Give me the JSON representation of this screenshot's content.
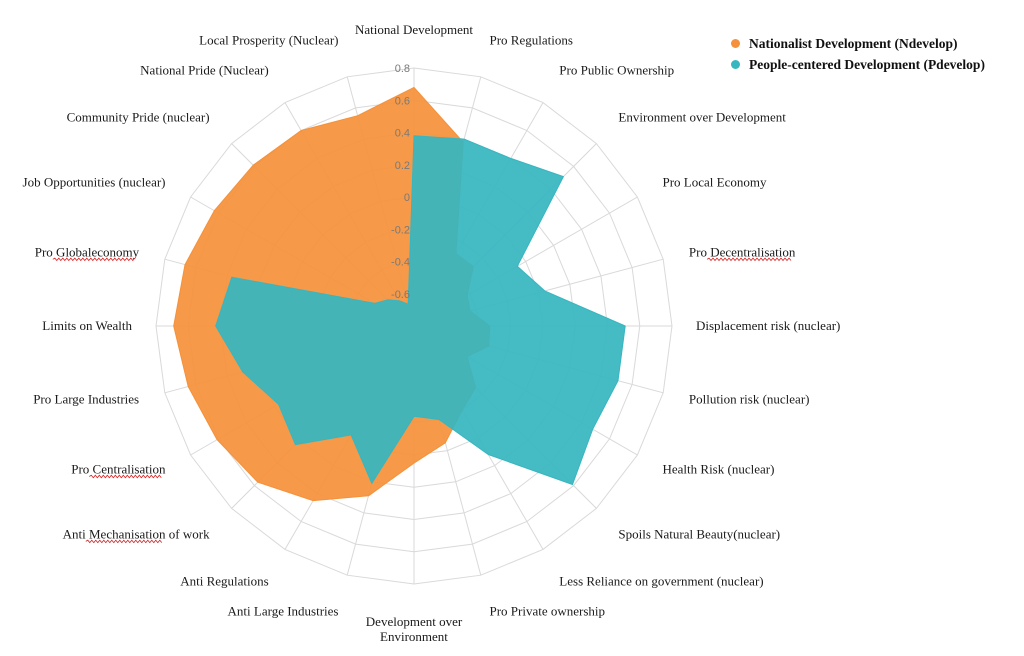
{
  "chart_data": {
    "type": "radar",
    "axes": [
      "National Development",
      "Pro Regulations",
      "Pro Public Ownership",
      "Environment over Development",
      "Pro Local Economy",
      "Pro Decentralisation",
      "Displacement risk (nuclear)",
      "Pollution risk (nuclear)",
      "Health Risk (nuclear)",
      "Spoils Natural Beauty(nuclear)",
      "Less Reliance on government (nuclear)",
      "Pro Private ownership",
      "Development over Environment",
      "Anti Large Industries",
      "Anti Regulations",
      "Anti Mechanisation of work",
      "Pro Centralisation",
      "Pro Large Industries",
      "Limits on Wealth",
      "Pro Globaleconomy",
      "Job Opportunities (nuclear)",
      "Community Pride (nuclear)",
      "National Pride (Nuclear)",
      "Local Prosperity (Nuclear)"
    ],
    "ticks": [
      "-0.6",
      "-0.4",
      "-0.2",
      "0",
      "0.2",
      "0.4",
      "0.6",
      "0.8"
    ],
    "rmin": -0.8,
    "rmax": 0.8,
    "series": [
      {
        "name": "Nationalist Development (Ndevelop)",
        "color": "#f5913a",
        "values": [
          0.68,
          0.38,
          -0.28,
          -0.28,
          -0.42,
          -0.44,
          -0.33,
          -0.32,
          -0.42,
          -0.26,
          -0.2,
          -0.05,
          0.05,
          0.29,
          0.45,
          0.57,
          0.61,
          0.65,
          0.69,
          0.67,
          0.63,
          0.61,
          0.6,
          0.55
        ]
      },
      {
        "name": "People-centered Development (Pdevelop)",
        "color": "#37b6c0",
        "values": [
          0.38,
          0.4,
          0.4,
          0.51,
          -0.06,
          0.04,
          0.51,
          0.51,
          0.48,
          0.59,
          0.12,
          -0.2,
          -0.24,
          0.21,
          -0.02,
          0.24,
          0.17,
          0.3,
          0.43,
          0.37,
          -0.52,
          -0.57,
          -0.62,
          -0.66
        ]
      }
    ],
    "legend_position": "top-right",
    "grid": true
  }
}
